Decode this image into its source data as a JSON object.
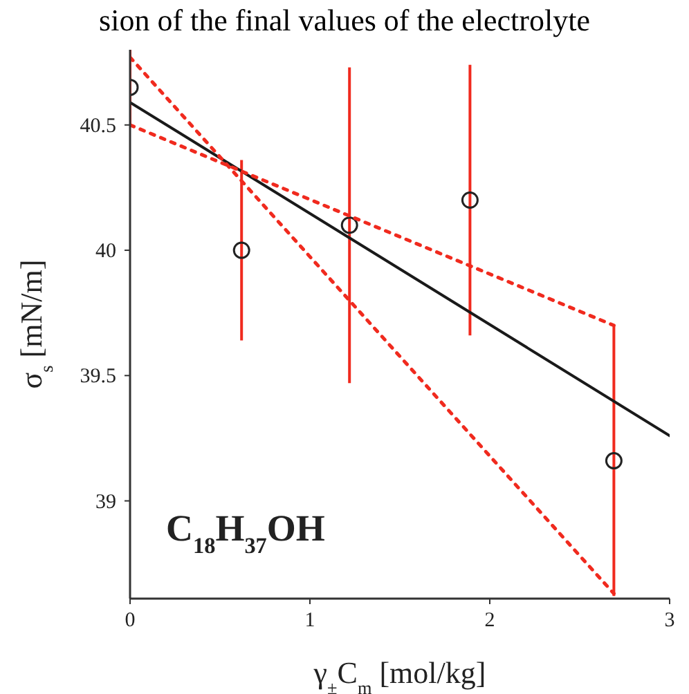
{
  "chart_data": {
    "type": "scatter",
    "title": "sion of the final values of the electrolyte",
    "xlabel": "γ$_{±}$C$_{m}$ [mol/kg]",
    "ylabel": "σ$_{s}$ [mN/m]",
    "xlim": [
      0,
      3
    ],
    "xticks": [
      0,
      1,
      2,
      3
    ],
    "ylim": [
      38.61,
      40.8
    ],
    "yticks": [
      39,
      39.5,
      40,
      40.5
    ],
    "grid": false,
    "annotations": [
      "C$_{18}$H$_{37}$OH"
    ],
    "series": [
      {
        "color": "#222222",
        "marker": "circle",
        "x": [
          0,
          0.62,
          1.22,
          1.89,
          2.69
        ],
        "values": [
          40.65,
          40.0,
          40.1,
          40.2,
          39.16
        ],
        "errors": [
          0.15,
          0.36,
          0.63,
          0.54,
          0.54
        ]
      },
      {
        "type": "line",
        "color": "#1a1a1a",
        "line_style": "solid",
        "x": [
          0,
          3
        ],
        "values": [
          40.59,
          39.26
        ]
      },
      {
        "type": "line",
        "color": "#f02a1e",
        "line_style": "dotted",
        "x": [
          0,
          2.69
        ],
        "values": [
          40.5,
          39.7
        ]
      },
      {
        "type": "line",
        "color": "#f02a1e",
        "line_style": "dotted",
        "x": [
          0,
          2.69
        ],
        "values": [
          40.77,
          38.63
        ]
      }
    ]
  }
}
